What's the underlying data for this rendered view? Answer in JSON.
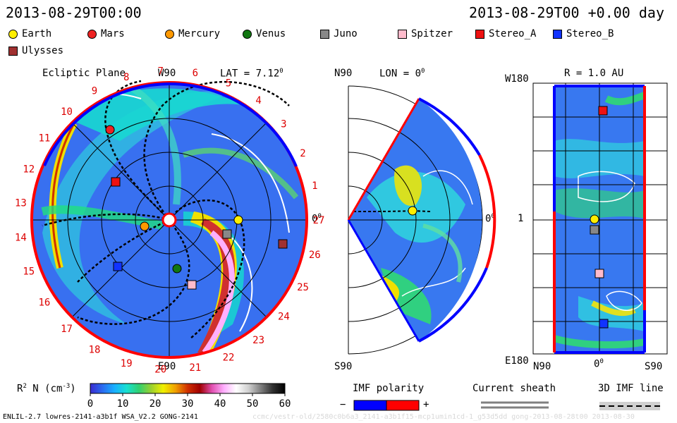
{
  "header": {
    "timestamp": "2013-08-29T00:00",
    "offset": "2013-08-29T00 +0.00 day"
  },
  "legend": {
    "items": [
      {
        "name": "Earth",
        "shape": "circle",
        "color": "#ffee00"
      },
      {
        "name": "Mars",
        "shape": "circle",
        "color": "#ee2222"
      },
      {
        "name": "Mercury",
        "shape": "circle",
        "color": "#ff9900"
      },
      {
        "name": "Venus",
        "shape": "circle",
        "color": "#117711"
      },
      {
        "name": "Juno",
        "shape": "square",
        "color": "#888888"
      },
      {
        "name": "Spitzer",
        "shape": "square",
        "color": "#ffbbcc"
      },
      {
        "name": "Stereo_A",
        "shape": "square",
        "color": "#ee1111"
      },
      {
        "name": "Stereo_B",
        "shape": "square",
        "color": "#1133ff"
      },
      {
        "name": "Ulysses",
        "shape": "square",
        "color": "#a03030"
      }
    ]
  },
  "panels": {
    "ecliptic": {
      "title": "Ecliptic Plane",
      "top_label": "W90",
      "bottom_label": "E90",
      "right_label": "0",
      "lat_label": "LAT = 7.12",
      "deg": "0",
      "hour_labels": [
        "1",
        "2",
        "3",
        "4",
        "5",
        "6",
        "7",
        "8",
        "9",
        "10",
        "11",
        "12",
        "13",
        "14",
        "15",
        "16",
        "17",
        "18",
        "19",
        "20",
        "21",
        "22",
        "23",
        "24",
        "25",
        "26",
        "27"
      ]
    },
    "meridional": {
      "top_label": "N90",
      "bottom_label": "S90",
      "right_label": "0",
      "lon_label": "LON = 0",
      "deg": "0"
    },
    "map": {
      "r_label": "R = 1.0 AU",
      "top_left": "W180",
      "mid_left": "1",
      "bottom_left": "E180",
      "x_left": "N90",
      "x_mid": "0",
      "x_right": "S90",
      "deg": "0"
    }
  },
  "colorbar": {
    "label": "R",
    "label_sup": "2",
    "label_rest": " N (cm",
    "label_unit_sup": "-3",
    "label_close": ")",
    "ticks": [
      "0",
      "10",
      "20",
      "30",
      "40",
      "50",
      "60"
    ],
    "stops": [
      "#3a2bd0",
      "#2a6bf0",
      "#18b0ff",
      "#18e0d0",
      "#30d070",
      "#9ad030",
      "#f0f000",
      "#f0a000",
      "#d03000",
      "#a00000",
      "#e050b0",
      "#ffb0ff",
      "#ffffff",
      "#d0d0d0",
      "#808080",
      "#303030",
      "#000000"
    ]
  },
  "bottom_legends": {
    "imf_title": "IMF polarity",
    "imf_minus": "−",
    "imf_plus": "+",
    "imf_neg_color": "#0000ff",
    "imf_pos_color": "#ff0000",
    "sheath_title": "Current sheath",
    "imf_line_title": "3D IMF line"
  },
  "footer": {
    "model": "ENLIL-2.7 lowres-2141-a3b1f WSA_V2.2 GONG-2141",
    "path": "ccmc/vestr-old/2580c0b6a3_2141-a3b1f15-mcp1umin1cd-1_g53d5dd gong-2013-08-28t00  2013-08-30"
  },
  "chart_data": {
    "type": "heatmap",
    "quantity": "R2 N (cm-3)",
    "colorbar_range": [
      0,
      60
    ],
    "time": "2013-08-29T00:00",
    "bodies": [
      {
        "name": "Earth",
        "panel": "ecliptic"
      },
      {
        "name": "Mars",
        "panel": "ecliptic"
      },
      {
        "name": "Mercury",
        "panel": "ecliptic"
      },
      {
        "name": "Venus",
        "panel": "ecliptic"
      },
      {
        "name": "Juno",
        "panel": "ecliptic"
      },
      {
        "name": "Spitzer",
        "panel": "ecliptic"
      },
      {
        "name": "Stereo_A",
        "panel": "ecliptic"
      },
      {
        "name": "Stereo_B",
        "panel": "ecliptic"
      },
      {
        "name": "Ulysses",
        "panel": "ecliptic"
      }
    ]
  }
}
